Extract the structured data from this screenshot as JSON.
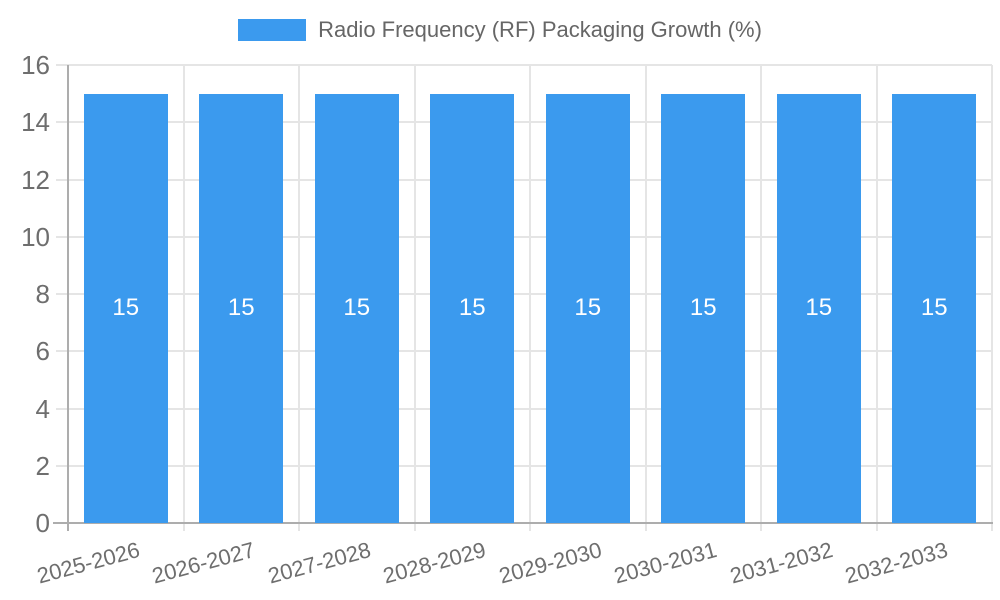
{
  "legend": {
    "label": "Radio Frequency (RF) Packaging Growth (%)"
  },
  "chart_data": {
    "type": "bar",
    "title": "",
    "series_name": "Radio Frequency (RF) Packaging Growth (%)",
    "categories": [
      "2025-2026",
      "2026-2027",
      "2027-2028",
      "2028-2029",
      "2029-2030",
      "2030-2031",
      "2031-2032",
      "2032-2033"
    ],
    "values": [
      15,
      15,
      15,
      15,
      15,
      15,
      15,
      15
    ],
    "xlabel": "",
    "ylabel": "",
    "ylim": [
      0,
      16
    ],
    "ytick_step": 2,
    "yticks": [
      0,
      2,
      4,
      6,
      8,
      10,
      12,
      14,
      16
    ],
    "grid": true,
    "legend_position": "top",
    "bar_label_position": "center"
  },
  "colors": {
    "bar": "#3B9AEE",
    "grid": "#E5E5E5",
    "axis": "#ADADAD",
    "tick_text": "#6E6E6E",
    "legend_text": "#666666",
    "bar_label_text": "#FFFFFF",
    "background": "#FFFFFF"
  }
}
